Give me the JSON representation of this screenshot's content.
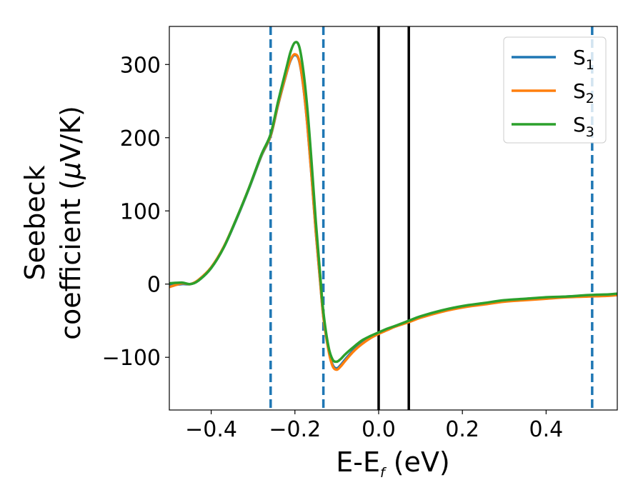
{
  "chart_data": {
    "type": "line",
    "xlabel_main": "E-E",
    "xlabel_sub": "f",
    "xlabel_unit": " (eV)",
    "ylabel_line1": "Seebeck",
    "ylabel_line2": "coefficient  (",
    "ylabel_mu": "μ",
    "ylabel_unit": "V/K)",
    "xlim": [
      -0.5,
      0.57
    ],
    "ylim": [
      -172,
      352
    ],
    "xticks": [
      -0.4,
      -0.2,
      0.0,
      0.2,
      0.4
    ],
    "xtick_labels": [
      "−0.4",
      "−0.2",
      "0.0",
      "0.2",
      "0.4"
    ],
    "yticks": [
      -100,
      0,
      100,
      200,
      300
    ],
    "ytick_labels": [
      "−100",
      "0",
      "100",
      "200",
      "300"
    ],
    "grid": false,
    "legend_position": "top-right",
    "vlines_dashed": [
      -0.258,
      -0.132,
      0.51
    ],
    "vlines_solid": [
      0.0,
      0.072
    ],
    "vline_dashed_color": "#1f77b4",
    "vline_solid_color": "#000000",
    "series": [
      {
        "name": "S",
        "sub": "1",
        "color": "#1f77b4",
        "x": [
          -0.5,
          -0.47,
          -0.45,
          -0.43,
          -0.4,
          -0.37,
          -0.34,
          -0.31,
          -0.28,
          -0.258,
          -0.24,
          -0.22,
          -0.21,
          -0.2,
          -0.19,
          -0.18,
          -0.17,
          -0.16,
          -0.15,
          -0.14,
          -0.132,
          -0.12,
          -0.11,
          -0.1,
          -0.09,
          -0.08,
          -0.06,
          -0.04,
          -0.02,
          0.0,
          0.02,
          0.04,
          0.072,
          0.1,
          0.15,
          0.2,
          0.25,
          0.3,
          0.35,
          0.4,
          0.45,
          0.5,
          0.55,
          0.57
        ],
        "y": [
          -2,
          0,
          0,
          5,
          22,
          50,
          88,
          130,
          175,
          202,
          245,
          288,
          306,
          313,
          305,
          270,
          215,
          145,
          70,
          5,
          -45,
          -88,
          -110,
          -115,
          -110,
          -103,
          -90,
          -80,
          -73,
          -67,
          -62,
          -58,
          -51,
          -45,
          -37,
          -31,
          -27,
          -23,
          -21,
          -19,
          -17,
          -16,
          -15,
          -14
        ]
      },
      {
        "name": "S",
        "sub": "2",
        "color": "#ff7f0e",
        "x": [
          -0.5,
          -0.47,
          -0.45,
          -0.43,
          -0.4,
          -0.37,
          -0.34,
          -0.31,
          -0.28,
          -0.258,
          -0.24,
          -0.22,
          -0.21,
          -0.2,
          -0.19,
          -0.18,
          -0.17,
          -0.16,
          -0.15,
          -0.14,
          -0.132,
          -0.12,
          -0.11,
          -0.1,
          -0.09,
          -0.08,
          -0.06,
          -0.04,
          -0.02,
          0.0,
          0.02,
          0.04,
          0.072,
          0.1,
          0.15,
          0.2,
          0.25,
          0.3,
          0.35,
          0.4,
          0.45,
          0.5,
          0.55,
          0.57
        ],
        "y": [
          -4,
          1,
          0,
          6,
          23,
          51,
          89,
          131,
          176,
          203,
          246,
          289,
          307,
          314,
          306,
          271,
          216,
          146,
          71,
          6,
          -45,
          -90,
          -112,
          -117,
          -112,
          -105,
          -92,
          -82,
          -74,
          -68,
          -63,
          -58,
          -52,
          -46,
          -38,
          -32,
          -28,
          -24,
          -22,
          -20,
          -18,
          -17,
          -16,
          -15
        ]
      },
      {
        "name": "S",
        "sub": "3",
        "color": "#2ca02c",
        "x": [
          -0.5,
          -0.47,
          -0.45,
          -0.43,
          -0.4,
          -0.37,
          -0.34,
          -0.31,
          -0.28,
          -0.258,
          -0.24,
          -0.22,
          -0.21,
          -0.2,
          -0.19,
          -0.18,
          -0.17,
          -0.16,
          -0.15,
          -0.14,
          -0.132,
          -0.12,
          -0.11,
          -0.1,
          -0.09,
          -0.08,
          -0.06,
          -0.04,
          -0.02,
          0.0,
          0.02,
          0.04,
          0.072,
          0.1,
          0.15,
          0.2,
          0.25,
          0.3,
          0.35,
          0.4,
          0.45,
          0.5,
          0.55,
          0.57
        ],
        "y": [
          1,
          2,
          0,
          5,
          22,
          50,
          89,
          131,
          177,
          205,
          250,
          296,
          318,
          330,
          325,
          292,
          238,
          165,
          85,
          15,
          -38,
          -85,
          -103,
          -106,
          -102,
          -96,
          -86,
          -77,
          -71,
          -66,
          -61,
          -57,
          -50,
          -44,
          -36,
          -30,
          -26,
          -22,
          -20,
          -18,
          -17,
          -15,
          -14,
          -13
        ]
      }
    ]
  }
}
